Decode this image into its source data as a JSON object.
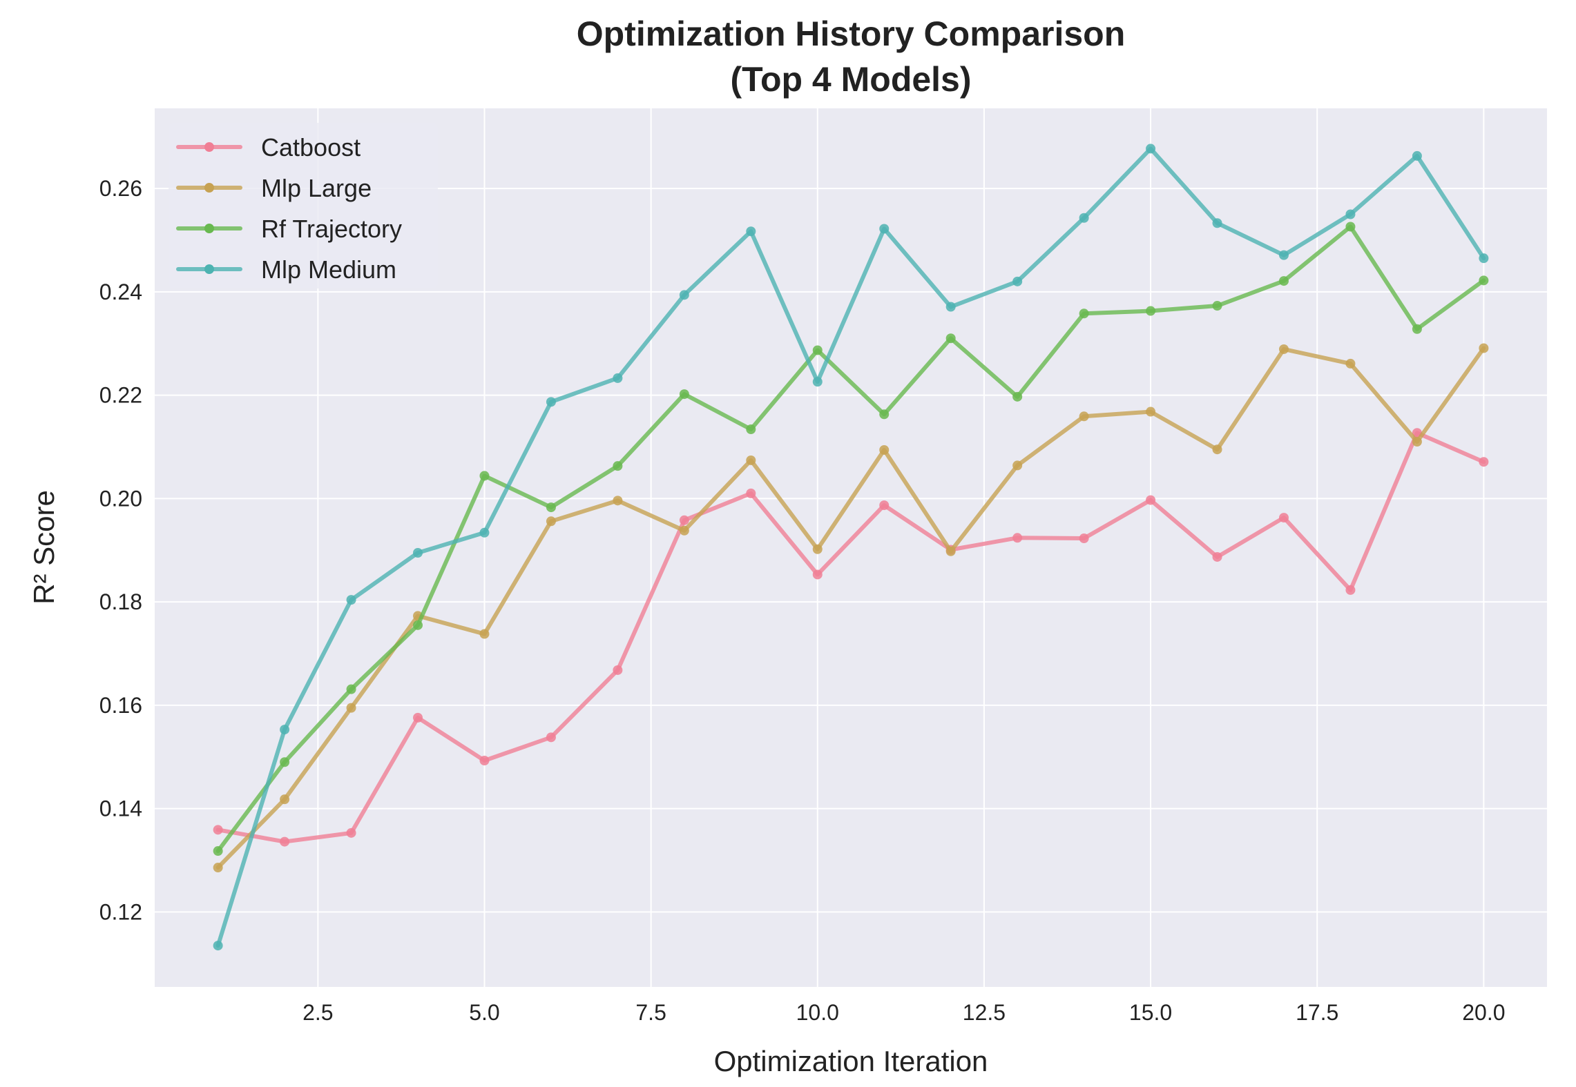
{
  "chart_data": {
    "type": "line",
    "title_line1": "Optimization History Comparison",
    "title_line2": "(Top 4 Models)",
    "xlabel": "Optimization Iteration",
    "ylabel": "R² Score",
    "xlim": [
      0.05,
      20.95
    ],
    "ylim": [
      0.1055,
      0.2755
    ],
    "xticks": [
      2.5,
      5.0,
      7.5,
      10.0,
      12.5,
      15.0,
      17.5,
      20.0
    ],
    "xtick_labels": [
      "2.5",
      "5.0",
      "7.5",
      "10.0",
      "12.5",
      "15.0",
      "17.5",
      "20.0"
    ],
    "yticks": [
      0.12,
      0.14,
      0.16,
      0.18,
      0.2,
      0.22,
      0.24,
      0.26
    ],
    "ytick_labels": [
      "0.12",
      "0.14",
      "0.16",
      "0.18",
      "0.20",
      "0.22",
      "0.24",
      "0.26"
    ],
    "grid": true,
    "legend_position": "top-left",
    "background": "#eaeaf2",
    "x": [
      1,
      2,
      3,
      4,
      5,
      6,
      7,
      8,
      9,
      10,
      11,
      12,
      13,
      14,
      15,
      16,
      17,
      18,
      19,
      20
    ],
    "series": [
      {
        "name": "Catboost",
        "color": "#f07f95",
        "values": [
          0.1359,
          0.1336,
          0.1353,
          0.1576,
          0.1493,
          0.1538,
          0.1668,
          0.1958,
          0.201,
          0.1853,
          0.1987,
          0.1901,
          0.1924,
          0.1923,
          0.1997,
          0.1887,
          0.1963,
          0.1823,
          0.2127,
          0.2071
        ]
      },
      {
        "name": "Mlp Large",
        "color": "#c7a252",
        "values": [
          0.1286,
          0.1418,
          0.1595,
          0.1773,
          0.1738,
          0.1956,
          0.1996,
          0.1938,
          0.2074,
          0.1902,
          0.2094,
          0.1898,
          0.2064,
          0.2159,
          0.2168,
          0.2095,
          0.2289,
          0.2261,
          0.211,
          0.2291
        ]
      },
      {
        "name": "Rf Trajectory",
        "color": "#68b94f",
        "values": [
          0.1318,
          0.149,
          0.1631,
          0.1755,
          0.2044,
          0.1983,
          0.2063,
          0.2202,
          0.2134,
          0.2287,
          0.2163,
          0.231,
          0.2197,
          0.2358,
          0.2363,
          0.2373,
          0.2421,
          0.2526,
          0.2328,
          0.2422
        ]
      },
      {
        "name": "Mlp Medium",
        "color": "#4db3b1",
        "values": [
          0.1135,
          0.1553,
          0.1804,
          0.1895,
          0.1934,
          0.2187,
          0.2233,
          0.2394,
          0.2517,
          0.2226,
          0.2522,
          0.2371,
          0.242,
          0.2543,
          0.2677,
          0.2533,
          0.2471,
          0.255,
          0.2663,
          0.2465
        ]
      }
    ]
  }
}
